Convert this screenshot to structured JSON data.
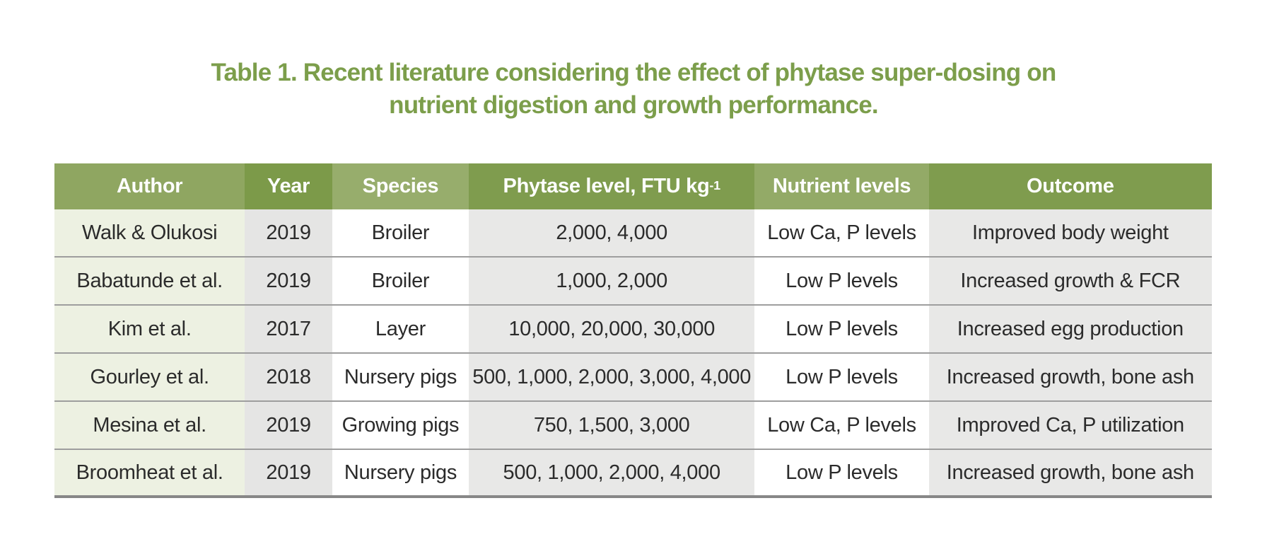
{
  "title": {
    "line1": "Table 1. Recent literature considering the effect of phytase super-dosing on",
    "line2": "nutrient digestion and growth performance."
  },
  "colors": {
    "title_green": "#7C9E4B",
    "header_text": "#FFFFFF",
    "cell_text": "#2B2B2B",
    "row_separator": "#9E9E9E",
    "bottom_border": "#878787"
  },
  "table": {
    "columns": [
      {
        "id": "author",
        "label": "Author",
        "sup": "",
        "width": "16.45%",
        "header_bg": "#8FA661",
        "body_bg": "#EDF1E2"
      },
      {
        "id": "year",
        "label": "Year",
        "sup": "",
        "width": "7.55%",
        "header_bg": "#7C9A49",
        "body_bg": "#E5E5E4"
      },
      {
        "id": "species",
        "label": "Species",
        "sup": "",
        "width": "11.80%",
        "header_bg": "#97AD6C",
        "body_bg": "#FFFFFF"
      },
      {
        "id": "phytase-level",
        "label": "Phytase level, FTU kg",
        "sup": "-1",
        "width": "24.70%",
        "header_bg": "#7F9C4E",
        "body_bg": "#E8E8E7"
      },
      {
        "id": "nutrient-levels",
        "label": "Nutrient levels",
        "sup": "",
        "width": "15.05%",
        "header_bg": "#93AA67",
        "body_bg": "#FFFFFF"
      },
      {
        "id": "outcome",
        "label": "Outcome",
        "sup": "",
        "width": "24.45%",
        "header_bg": "#7F9C4E",
        "body_bg": "#E8E8E7"
      }
    ],
    "rows": [
      [
        "Walk & Olukosi",
        "2019",
        "Broiler",
        "2,000, 4,000",
        "Low Ca, P levels",
        "Improved body weight"
      ],
      [
        "Babatunde et al.",
        "2019",
        "Broiler",
        "1,000, 2,000",
        "Low P levels",
        "Increased growth & FCR"
      ],
      [
        "Kim et al.",
        "2017",
        "Layer",
        "10,000, 20,000, 30,000",
        "Low P levels",
        "Increased egg production"
      ],
      [
        "Gourley et al.",
        "2018",
        "Nursery pigs",
        "500, 1,000, 2,000, 3,000, 4,000",
        "Low P levels",
        "Increased growth, bone ash"
      ],
      [
        "Mesina et al.",
        "2019",
        "Growing pigs",
        "750, 1,500, 3,000",
        "Low Ca, P levels",
        "Improved Ca, P utilization"
      ],
      [
        "Broomheat et al.",
        "2019",
        "Nursery pigs",
        "500, 1,000, 2,000, 4,000",
        "Low P levels",
        "Increased growth, bone ash"
      ]
    ]
  }
}
